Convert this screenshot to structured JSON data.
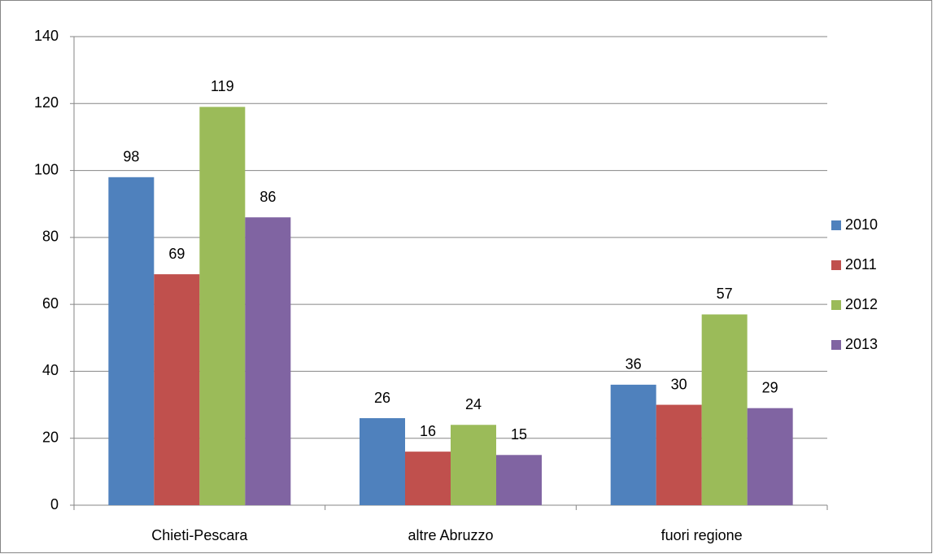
{
  "chart_data": {
    "type": "bar",
    "categories": [
      "Chieti-Pescara",
      "altre Abruzzo",
      "fuori regione"
    ],
    "series": [
      {
        "name": "2010",
        "color": "#4f81bd",
        "values": [
          98,
          26,
          36
        ]
      },
      {
        "name": "2011",
        "color": "#c0504d",
        "values": [
          69,
          16,
          30
        ]
      },
      {
        "name": "2012",
        "color": "#9bbb59",
        "values": [
          119,
          24,
          57
        ]
      },
      {
        "name": "2013",
        "color": "#8064a2",
        "values": [
          86,
          15,
          29
        ]
      }
    ],
    "ylim": [
      0,
      140
    ],
    "yticks": [
      0,
      20,
      40,
      60,
      80,
      100,
      120,
      140
    ],
    "grid": true,
    "legend": "right"
  }
}
